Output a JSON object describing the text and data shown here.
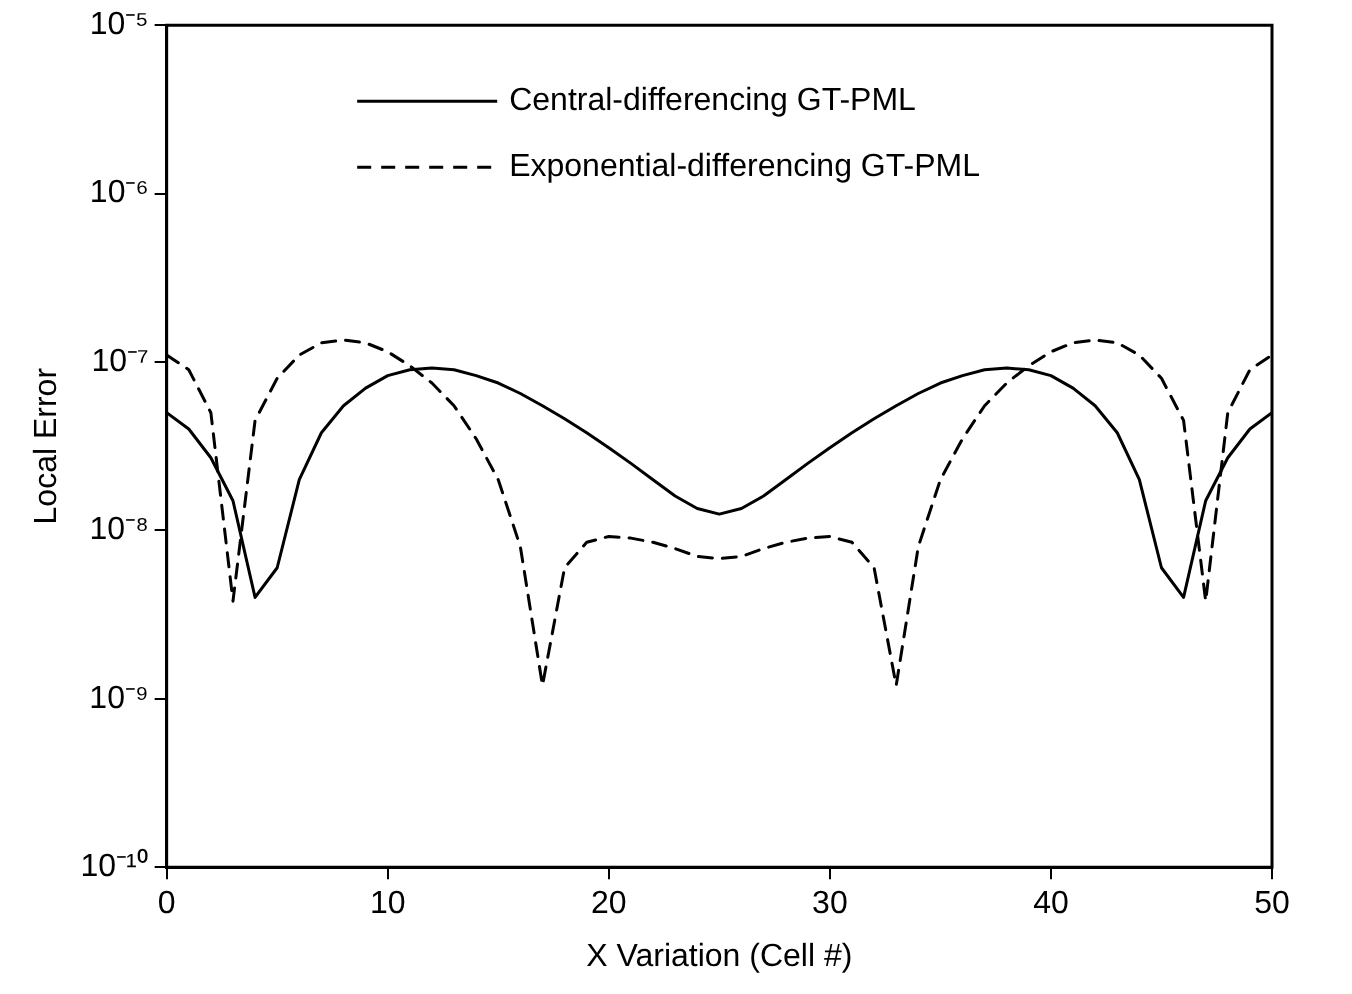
{
  "chart_data": {
    "type": "line",
    "xlabel": "X Variation (Cell #)",
    "ylabel": "Local Error",
    "log": "y",
    "grid": false,
    "legend": "top",
    "marker": "none",
    "x": [
      0,
      1,
      2,
      3,
      4,
      5,
      6,
      7,
      8,
      9,
      10,
      11,
      12,
      13,
      14,
      15,
      16,
      17,
      18,
      19,
      20,
      21,
      22,
      23,
      24,
      25,
      26,
      27,
      28,
      29,
      30,
      31,
      32,
      33,
      34,
      35,
      36,
      37,
      38,
      39,
      40,
      41,
      42,
      43,
      44,
      45,
      46,
      47,
      48,
      49,
      50
    ],
    "xlim": [
      0,
      50
    ],
    "xticks": [
      0,
      10,
      20,
      30,
      40,
      50
    ],
    "ylim": [
      1e-10,
      1e-05
    ],
    "yticks": [
      {
        "value": 1e-10,
        "label": "10⁻¹⁰"
      },
      {
        "value": 1e-09,
        "label": "10⁻⁹"
      },
      {
        "value": 1e-08,
        "label": "10⁻⁸"
      },
      {
        "value": 1e-07,
        "label": "10⁻⁷"
      },
      {
        "value": 1e-06,
        "label": "10⁻⁶"
      },
      {
        "value": 1e-05,
        "label": "10⁻⁵"
      }
    ],
    "series": [
      {
        "name": "Central-differencing GT-PML",
        "color": "#000000",
        "line_style": "solid",
        "values": [
          5e-08,
          4e-08,
          2.7e-08,
          1.5e-08,
          4e-09,
          6e-09,
          2e-08,
          3.8e-08,
          5.5e-08,
          7e-08,
          8.3e-08,
          9e-08,
          9.2e-08,
          9e-08,
          8.3e-08,
          7.5e-08,
          6.5e-08,
          5.5e-08,
          4.6e-08,
          3.8e-08,
          3.1e-08,
          2.5e-08,
          2e-08,
          1.6e-08,
          1.35e-08,
          1.25e-08,
          1.35e-08,
          1.6e-08,
          2e-08,
          2.5e-08,
          3.1e-08,
          3.8e-08,
          4.6e-08,
          5.5e-08,
          6.5e-08,
          7.5e-08,
          8.3e-08,
          9e-08,
          9.2e-08,
          9e-08,
          8.3e-08,
          7e-08,
          5.5e-08,
          3.8e-08,
          2e-08,
          6e-09,
          4e-09,
          1.5e-08,
          2.7e-08,
          4e-08,
          5e-08
        ]
      },
      {
        "name": "Exponential-differencing GT-PML",
        "color": "#000000",
        "line_style": "dashed",
        "values": [
          1.1e-07,
          9e-08,
          5e-08,
          3.8e-09,
          4.5e-08,
          8e-08,
          1.1e-07,
          1.3e-07,
          1.35e-07,
          1.3e-07,
          1.15e-07,
          9.5e-08,
          7.5e-08,
          5.5e-08,
          3.5e-08,
          2e-08,
          8e-09,
          1.2e-09,
          6e-09,
          8.5e-09,
          9.2e-09,
          9e-09,
          8.5e-09,
          7.8e-09,
          7e-09,
          6.8e-09,
          7e-09,
          7.8e-09,
          8.5e-09,
          9e-09,
          9.2e-09,
          8.5e-09,
          6e-09,
          1.2e-09,
          8e-09,
          2e-08,
          3.5e-08,
          5.5e-08,
          7.5e-08,
          9.5e-08,
          1.15e-07,
          1.3e-07,
          1.35e-07,
          1.3e-07,
          1.1e-07,
          8e-08,
          4.5e-08,
          3.8e-09,
          5e-08,
          9e-08,
          1.1e-07
        ]
      }
    ]
  }
}
